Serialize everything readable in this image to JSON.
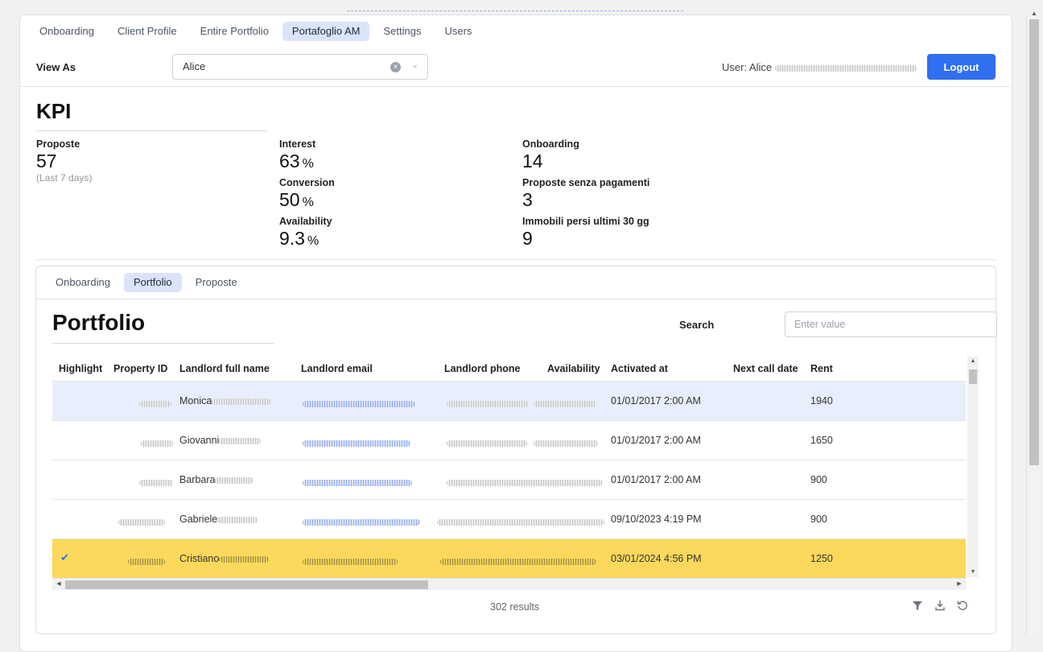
{
  "nav": {
    "tabs": [
      {
        "label": "Onboarding"
      },
      {
        "label": "Client Profile"
      },
      {
        "label": "Entire Portfolio"
      },
      {
        "label": "Portafoglio AM",
        "active": true
      },
      {
        "label": "Settings"
      },
      {
        "label": "Users"
      }
    ]
  },
  "view_as": {
    "label": "View As",
    "value": "Alice"
  },
  "user": {
    "label": "User: Alice"
  },
  "logout_label": "Logout",
  "kpi": {
    "title": "KPI",
    "proposte": {
      "label": "Proposte",
      "value": "57",
      "note": "(Last 7 days)"
    },
    "interest": {
      "label": "Interest",
      "value": "63",
      "unit": "%"
    },
    "conversion": {
      "label": "Conversion",
      "value": "50",
      "unit": "%"
    },
    "availability": {
      "label": "Availability",
      "value": "9.3",
      "unit": "%"
    },
    "onboarding": {
      "label": "Onboarding",
      "value": "14"
    },
    "proposte_senza": {
      "label": "Proposte senza pagamenti",
      "value": "3"
    },
    "immobili": {
      "label": "Immobili persi ultimi 30 gg",
      "value": "9"
    }
  },
  "sub_tabs": [
    {
      "label": "Onboarding"
    },
    {
      "label": "Portfolio",
      "active": true
    },
    {
      "label": "Proposte"
    }
  ],
  "portfolio": {
    "title": "Portfolio",
    "search_label": "Search",
    "search_placeholder": "Enter value",
    "columns": [
      "Highlight",
      "Property ID",
      "Landlord full name",
      "Landlord email",
      "Landlord phone",
      "Availability",
      "Activated at",
      "Next call date",
      "Rent"
    ],
    "rows": [
      {
        "name": "Monica",
        "activated": "01/01/2017 2:00 AM",
        "rent": "1940",
        "highlight": "blue"
      },
      {
        "name": "Giovanni",
        "activated": "01/01/2017 2:00 AM",
        "rent": "1650",
        "highlight": ""
      },
      {
        "name": "Barbara",
        "activated": "01/01/2017 2:00 AM",
        "rent": "900",
        "highlight": ""
      },
      {
        "name": "Gabriele",
        "activated": "09/10/2023 4:19 PM",
        "rent": "900",
        "highlight": ""
      },
      {
        "name": "Cristiano",
        "activated": "03/01/2024 4:56 PM",
        "rent": "1250",
        "highlight": "yellow",
        "checked": true
      }
    ],
    "results": "302 results"
  },
  "icons": {
    "filter": "filter-icon",
    "download": "download-icon",
    "refresh": "refresh-icon",
    "check": "check-icon",
    "clear": "clear-icon",
    "chevron": "chevron-down-icon"
  },
  "colors": {
    "accent": "#2f6ff0",
    "active_tab": "#dbe4fb",
    "row_blue": "#e8eefc",
    "row_yellow": "#fcd95c"
  }
}
